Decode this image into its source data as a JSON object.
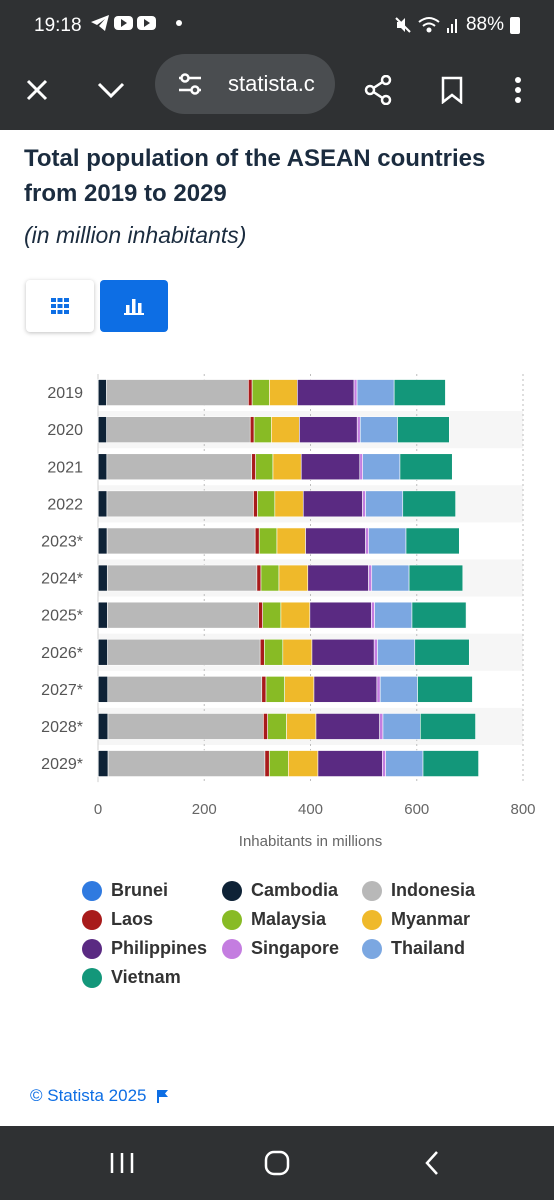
{
  "status_bar": {
    "time": "19:18",
    "battery": "88%"
  },
  "browser": {
    "url": "statista.c"
  },
  "page": {
    "title": "Total population of the ASEAN countries from 2019 to 2029",
    "subtitle": "(in million inhabitants)",
    "credit": "© Statista 2025"
  },
  "colors": {
    "Brunei": "#2f7ae0",
    "Cambodia": "#0e2236",
    "Indonesia": "#b8b8b8",
    "Laos": "#a81b1b",
    "Malaysia": "#88bb25",
    "Myanmar": "#efb92a",
    "Philippines": "#5a2a82",
    "Singapore": "#c47de0",
    "Thailand": "#7ba7e1",
    "Vietnam": "#13977a"
  },
  "chart_data": {
    "type": "bar",
    "orientation": "horizontal",
    "stacked": true,
    "categories": [
      "2019",
      "2020",
      "2021",
      "2022",
      "2023*",
      "2024*",
      "2025*",
      "2026*",
      "2027*",
      "2028*",
      "2029*"
    ],
    "series": [
      {
        "name": "Brunei",
        "values": [
          0.46,
          0.46,
          0.46,
          0.47,
          0.47,
          0.47,
          0.48,
          0.48,
          0.49,
          0.49,
          0.49
        ]
      },
      {
        "name": "Cambodia",
        "values": [
          15.6,
          15.9,
          16.2,
          16.4,
          16.7,
          17.0,
          17.3,
          17.6,
          17.9,
          18.2,
          18.5
        ]
      },
      {
        "name": "Indonesia",
        "values": [
          266.9,
          270.2,
          272.7,
          275.8,
          278.7,
          281.6,
          284.4,
          287.2,
          289.9,
          292.6,
          295.2
        ]
      },
      {
        "name": "Laos",
        "values": [
          7.2,
          7.3,
          7.4,
          7.5,
          7.6,
          7.7,
          7.8,
          7.9,
          8.0,
          8.1,
          8.2
        ]
      },
      {
        "name": "Malaysia",
        "values": [
          32.5,
          32.4,
          32.6,
          32.7,
          33.4,
          33.9,
          34.3,
          34.7,
          35.1,
          35.5,
          35.9
        ]
      },
      {
        "name": "Myanmar",
        "values": [
          52.6,
          52.9,
          53.2,
          53.5,
          53.8,
          54.2,
          54.5,
          54.8,
          55.1,
          55.4,
          55.7
        ]
      },
      {
        "name": "Philippines",
        "values": [
          106.7,
          108.8,
          110.2,
          111.6,
          113.0,
          114.4,
          115.8,
          117.2,
          118.5,
          119.9,
          121.2
        ]
      },
      {
        "name": "Singapore",
        "values": [
          5.7,
          5.7,
          5.5,
          5.6,
          5.9,
          6.0,
          6.1,
          6.1,
          6.2,
          6.2,
          6.3
        ]
      },
      {
        "name": "Thailand",
        "values": [
          69.8,
          70.0,
          70.1,
          70.1,
          70.2,
          70.3,
          70.3,
          70.3,
          70.3,
          70.3,
          70.3
        ]
      },
      {
        "name": "Vietnam",
        "values": [
          96.5,
          97.6,
          98.5,
          99.5,
          100.3,
          101.1,
          101.9,
          102.6,
          103.3,
          104.0,
          104.6
        ]
      }
    ],
    "xlabel": "Inhabitants in millions",
    "xlim": [
      0,
      800
    ],
    "xticks": [
      0,
      200,
      400,
      600,
      800
    ],
    "grid": true,
    "legend_position": "bottom"
  }
}
